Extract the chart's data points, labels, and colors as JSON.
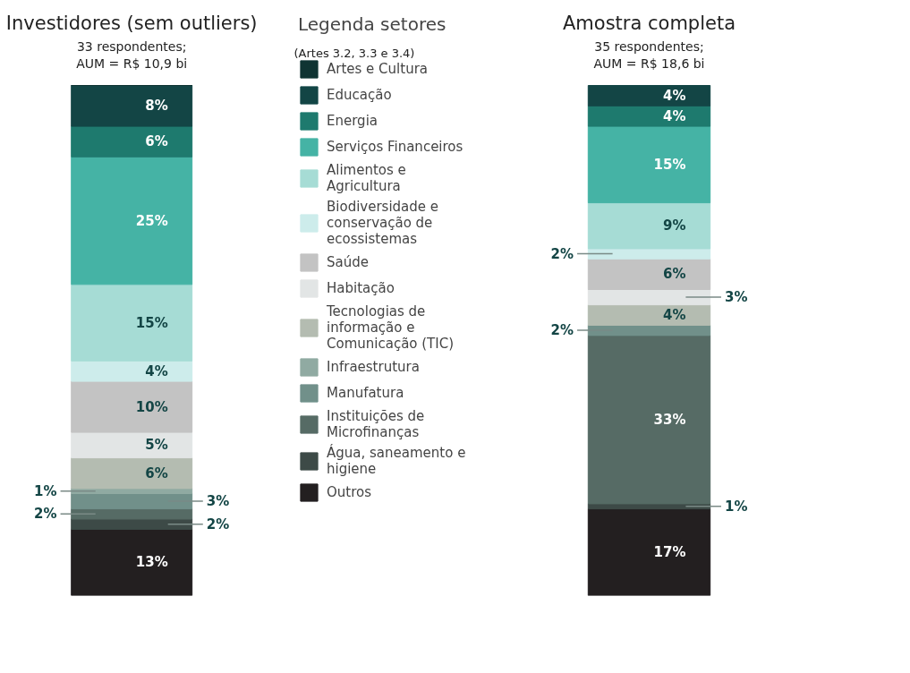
{
  "chart_data": [
    {
      "type": "bar",
      "title": "Investidores (sem outliers)",
      "subtitle": "33 respondentes;\nAUM = R$ 10,9 bi",
      "legend_title": "Legenda setores",
      "annotations": [
        "(Artes 3.2, 3.3 e 3.4)"
      ],
      "categories": [
        null
      ],
      "stacked": true,
      "legend": "right",
      "series": [
        {
          "name": "Outros",
          "color": "#231f20",
          "values": [
            13
          ],
          "value_labels": [
            "13%"
          ]
        },
        {
          "name": "Água, saneamento e higiene",
          "color": "#3d4a47",
          "values": [
            2
          ],
          "value_labels": [
            "2%"
          ]
        },
        {
          "name": "Instituições de Microfinanças",
          "color": "#566b65",
          "values": [
            2
          ],
          "value_labels": [
            "2%"
          ]
        },
        {
          "name": "Manufatura",
          "color": "#71908a",
          "values": [
            3
          ],
          "value_labels": [
            "3%"
          ]
        },
        {
          "name": "Infraestrutura",
          "color": "#90aaa2",
          "values": [
            1
          ],
          "value_labels": [
            "1%"
          ]
        },
        {
          "name": "Tecnologias de informação e Comunicação (TIC)",
          "color": "#b4bcb1",
          "values": [
            6
          ],
          "value_labels": [
            "6%"
          ]
        },
        {
          "name": "Habitação",
          "color": "#e2e5e5",
          "values": [
            5
          ],
          "value_labels": [
            "5%"
          ]
        },
        {
          "name": "Saúde",
          "color": "#c3c3c3",
          "values": [
            10
          ],
          "value_labels": [
            "10%"
          ]
        },
        {
          "name": "Biodiversidade e conservação de ecossistemas",
          "color": "#cdeceb",
          "values": [
            4
          ],
          "value_labels": [
            "4%"
          ]
        },
        {
          "name": "Alimentos e Agricultura",
          "color": "#a6dcd5",
          "values": [
            15
          ],
          "value_labels": [
            "15%"
          ]
        },
        {
          "name": "Serviços Financeiros",
          "color": "#45b3a5",
          "values": [
            25
          ],
          "value_labels": [
            "25%"
          ]
        },
        {
          "name": "Energia",
          "color": "#1e7a6e",
          "values": [
            6
          ],
          "value_labels": [
            "6%"
          ]
        },
        {
          "name": "Educação",
          "color": "#134545",
          "values": [
            8
          ],
          "value_labels": [
            "8%"
          ]
        },
        {
          "name": "Artes e Cultura",
          "color": "#0f3433",
          "values": [
            0
          ],
          "value_labels": [
            null
          ]
        }
      ]
    },
    {
      "type": "bar",
      "title": "Amostra completa",
      "subtitle": "35 respondentes;\nAUM = R$ 18,6 bi",
      "categories": [
        null
      ],
      "stacked": true,
      "series": [
        {
          "color": "#231f20",
          "values": [
            17
          ],
          "value_labels": [
            "17%"
          ]
        },
        {
          "color": "#3d4a47",
          "values": [
            1
          ],
          "value_labels": [
            "1%"
          ]
        },
        {
          "color": "#566b65",
          "values": [
            33
          ],
          "value_labels": [
            "33%"
          ]
        },
        {
          "color": "#71908a",
          "values": [
            2
          ],
          "value_labels": [
            "2%"
          ]
        },
        {
          "color": "#b4bcb1",
          "values": [
            4
          ],
          "value_labels": [
            "4%"
          ]
        },
        {
          "color": "#e2e5e5",
          "values": [
            3
          ],
          "value_labels": [
            "3%"
          ]
        },
        {
          "color": "#c3c3c3",
          "values": [
            6
          ],
          "value_labels": [
            "6%"
          ]
        },
        {
          "color": "#cdeceb",
          "values": [
            2
          ],
          "value_labels": [
            "2%"
          ]
        },
        {
          "color": "#a6dcd5",
          "values": [
            9
          ],
          "value_labels": [
            "9%"
          ]
        },
        {
          "color": "#45b3a5",
          "values": [
            15
          ],
          "value_labels": [
            "15%"
          ]
        },
        {
          "color": "#1e7a6e",
          "values": [
            4
          ],
          "value_labels": [
            "4%"
          ]
        },
        {
          "color": "#134545",
          "values": [
            4
          ],
          "value_labels": [
            "4%"
          ]
        }
      ]
    }
  ]
}
